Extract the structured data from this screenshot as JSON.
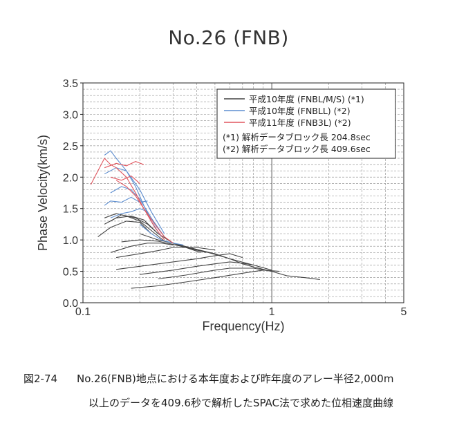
{
  "title": "No.26 (FNB)",
  "caption": {
    "prefix": "図2-74",
    "line1": "No.26(FNB)地点における本年度および昨年度のアレー半径2,000m",
    "line2": "以上のデータを409.6秒で解析したSPAC法で求めた位相速度曲線"
  },
  "colors": {
    "gray": "#444444",
    "blue": "#5d8ed0",
    "red": "#e0555e",
    "grid": "#9a9a9a"
  },
  "chart_data": {
    "type": "line",
    "xlabel": "Frequency(Hz)",
    "ylabel": "Phase Velocity(km/s)",
    "xscale": "log",
    "xlim": [
      0.1,
      5
    ],
    "ylim": [
      0,
      3.5
    ],
    "xticks": [
      0.1,
      1,
      5
    ],
    "xtick_labels": [
      "0.1",
      "1",
      "5"
    ],
    "yticks": [
      0,
      0.5,
      1,
      1.5,
      2,
      2.5,
      3,
      3.5
    ],
    "ytick_labels": [
      "0.0",
      "0.5",
      "1.0",
      "1.5",
      "2.0",
      "2.5",
      "3.0",
      "3.5"
    ],
    "grid": true,
    "legend": {
      "position": "top-right",
      "entries": [
        {
          "label": "平成10年度 (FNBL/M/S) (*1)",
          "color": "gray"
        },
        {
          "label": "平成10年度 (FNBLL) (*2)",
          "color": "blue"
        },
        {
          "label": "平成11年度 (FNB3L) (*2)",
          "color": "red"
        }
      ],
      "notes": [
        "(*1) 解析データブロック長 204.8sec",
        "(*2) 解析データブロック長 409.6sec"
      ]
    },
    "series": [
      {
        "group": "gray",
        "x": [
          0.13,
          0.15,
          0.17,
          0.2,
          0.23,
          0.27
        ],
        "y": [
          1.35,
          1.42,
          1.38,
          1.3,
          1.15,
          0.98
        ]
      },
      {
        "group": "gray",
        "x": [
          0.13,
          0.15,
          0.18,
          0.21,
          0.25
        ],
        "y": [
          1.25,
          1.35,
          1.38,
          1.32,
          1.1
        ]
      },
      {
        "group": "gray",
        "x": [
          0.12,
          0.14,
          0.17,
          0.2,
          0.23
        ],
        "y": [
          1.05,
          1.2,
          1.3,
          1.28,
          1.1
        ]
      },
      {
        "group": "gray",
        "x": [
          0.14,
          0.16,
          0.19,
          0.22,
          0.25,
          0.3,
          0.35,
          0.42
        ],
        "y": [
          1.3,
          1.4,
          1.35,
          1.25,
          1.1,
          0.95,
          0.88,
          0.8
        ]
      },
      {
        "group": "gray",
        "x": [
          0.2,
          0.25,
          0.3,
          0.4,
          0.5,
          0.6,
          0.8,
          1.0
        ],
        "y": [
          1.1,
          1.0,
          0.95,
          0.85,
          0.78,
          0.7,
          0.6,
          0.52
        ]
      },
      {
        "group": "gray",
        "x": [
          0.3,
          0.4,
          0.5,
          0.6,
          0.7,
          0.8,
          1.0,
          1.2,
          1.5,
          1.8
        ],
        "y": [
          0.93,
          0.85,
          0.77,
          0.7,
          0.62,
          0.57,
          0.5,
          0.43,
          0.4,
          0.37
        ]
      },
      {
        "group": "gray",
        "x": [
          0.14,
          0.18,
          0.22,
          0.26,
          0.3
        ],
        "y": [
          0.8,
          0.9,
          0.95,
          0.95,
          0.92
        ]
      },
      {
        "group": "gray",
        "x": [
          0.15,
          0.2,
          0.25,
          0.3,
          0.4,
          0.5
        ],
        "y": [
          0.72,
          0.78,
          0.83,
          0.88,
          0.88,
          0.84
        ]
      },
      {
        "group": "gray",
        "x": [
          0.16,
          0.2,
          0.25,
          0.3,
          0.35,
          0.45
        ],
        "y": [
          0.97,
          1.0,
          0.98,
          0.93,
          0.88,
          0.8
        ]
      },
      {
        "group": "gray",
        "x": [
          0.15,
          0.2,
          0.3,
          0.4,
          0.5,
          0.6,
          0.7
        ],
        "y": [
          0.53,
          0.58,
          0.65,
          0.7,
          0.75,
          0.78,
          0.72
        ]
      },
      {
        "group": "gray",
        "x": [
          0.2,
          0.3,
          0.4,
          0.5,
          0.6,
          0.7,
          0.8
        ],
        "y": [
          0.45,
          0.52,
          0.58,
          0.62,
          0.65,
          0.63,
          0.6
        ]
      },
      {
        "group": "gray",
        "x": [
          0.25,
          0.35,
          0.5,
          0.6,
          0.8,
          1.0
        ],
        "y": [
          0.38,
          0.44,
          0.52,
          0.55,
          0.55,
          0.5
        ]
      },
      {
        "group": "gray",
        "x": [
          0.18,
          0.25,
          0.35,
          0.5,
          0.7,
          0.9,
          1.1
        ],
        "y": [
          0.23,
          0.27,
          0.33,
          0.4,
          0.47,
          0.52,
          0.5
        ]
      },
      {
        "group": "blue",
        "x": [
          0.13,
          0.14,
          0.15,
          0.17,
          0.19,
          0.21,
          0.23,
          0.26
        ],
        "y": [
          2.35,
          2.42,
          2.3,
          2.1,
          1.85,
          1.55,
          1.3,
          1.05
        ]
      },
      {
        "group": "blue",
        "x": [
          0.13,
          0.15,
          0.17,
          0.2,
          0.23,
          0.27
        ],
        "y": [
          2.05,
          2.15,
          2.1,
          1.8,
          1.45,
          1.1
        ]
      },
      {
        "group": "blue",
        "x": [
          0.14,
          0.16,
          0.18,
          0.2,
          0.23,
          0.27
        ],
        "y": [
          1.75,
          1.85,
          1.8,
          1.65,
          1.35,
          1.05
        ]
      },
      {
        "group": "blue",
        "x": [
          0.13,
          0.14,
          0.16,
          0.18,
          0.2,
          0.22
        ],
        "y": [
          1.55,
          1.62,
          1.6,
          1.68,
          1.6,
          1.62
        ]
      },
      {
        "group": "blue",
        "x": [
          0.14,
          0.16,
          0.18,
          0.2,
          0.22
        ],
        "y": [
          1.35,
          1.42,
          1.45,
          1.5,
          1.45
        ]
      },
      {
        "group": "blue",
        "x": [
          0.2,
          0.23,
          0.26,
          0.3,
          0.34
        ],
        "y": [
          1.25,
          1.1,
          1.0,
          0.95,
          0.92
        ]
      },
      {
        "group": "red",
        "x": [
          0.11,
          0.12,
          0.13,
          0.14,
          0.15,
          0.17,
          0.19,
          0.21,
          0.24,
          0.27
        ],
        "y": [
          1.88,
          2.1,
          2.3,
          2.2,
          2.15,
          2.0,
          1.75,
          1.5,
          1.2,
          1.0
        ]
      },
      {
        "group": "red",
        "x": [
          0.13,
          0.15,
          0.17,
          0.19,
          0.21
        ],
        "y": [
          2.15,
          2.22,
          2.18,
          2.25,
          2.2
        ]
      },
      {
        "group": "red",
        "x": [
          0.14,
          0.16,
          0.18,
          0.2
        ],
        "y": [
          2.0,
          1.95,
          2.02,
          1.9
        ]
      },
      {
        "group": "red",
        "x": [
          0.15,
          0.17,
          0.19,
          0.21,
          0.24,
          0.27,
          0.3
        ],
        "y": [
          1.95,
          1.85,
          1.7,
          1.5,
          1.25,
          1.05,
          0.95
        ]
      }
    ]
  }
}
